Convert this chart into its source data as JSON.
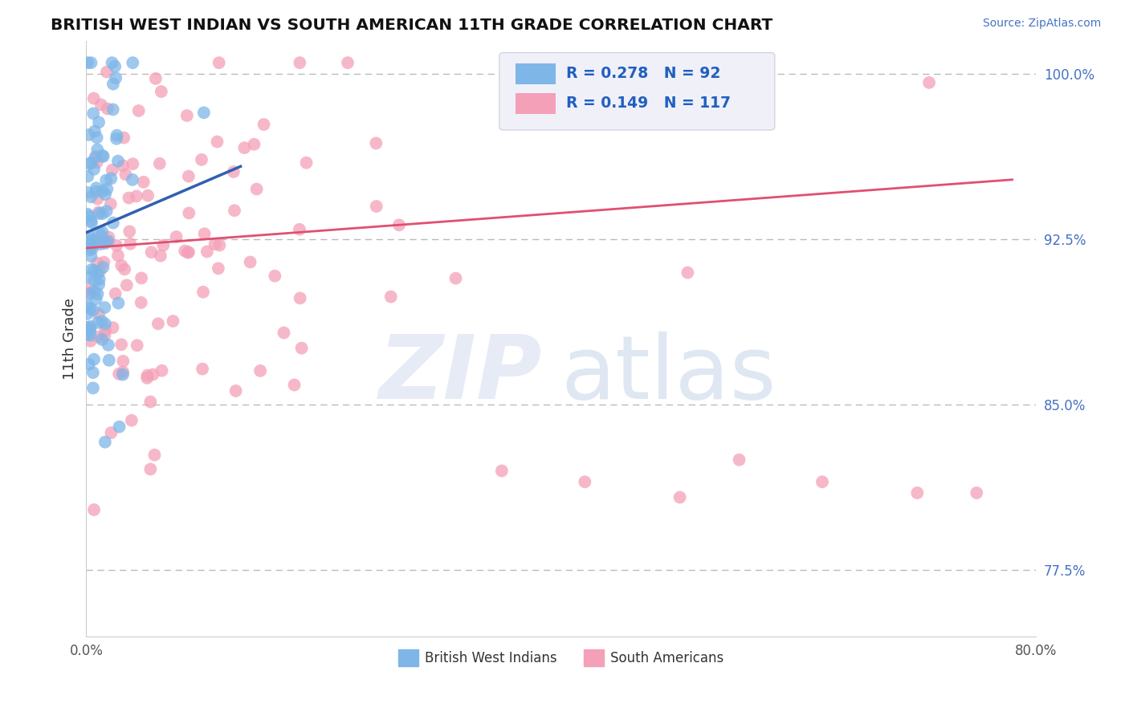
{
  "title": "BRITISH WEST INDIAN VS SOUTH AMERICAN 11TH GRADE CORRELATION CHART",
  "source_text": "Source: ZipAtlas.com",
  "ylabel": "11th Grade",
  "xlim": [
    0.0,
    0.8
  ],
  "ylim": [
    0.745,
    1.015
  ],
  "blue_color": "#7EB6E8",
  "pink_color": "#F4A0B8",
  "blue_edge_color": "#5090C0",
  "pink_edge_color": "#D06080",
  "blue_line_color": "#3060B0",
  "pink_line_color": "#E05070",
  "legend_R_blue": "R = 0.278",
  "legend_N_blue": "N = 92",
  "legend_R_pink": "R = 0.149",
  "legend_N_pink": "N = 117",
  "dashed_line_color": "#BBBBBB",
  "dashed_line_y1": 1.0,
  "dashed_line_y2": 0.925,
  "dashed_line_y3": 0.85,
  "dashed_line_y4": 0.775,
  "watermark_zip_color": "#D0D8F0",
  "watermark_atlas_color": "#C0D4E8",
  "blue_line_x0": 0.0,
  "blue_line_x1": 0.13,
  "blue_line_y0": 0.928,
  "blue_line_y1": 0.958,
  "pink_line_x0": 0.0,
  "pink_line_x1": 0.78,
  "pink_line_y0": 0.921,
  "pink_line_y1": 0.952
}
